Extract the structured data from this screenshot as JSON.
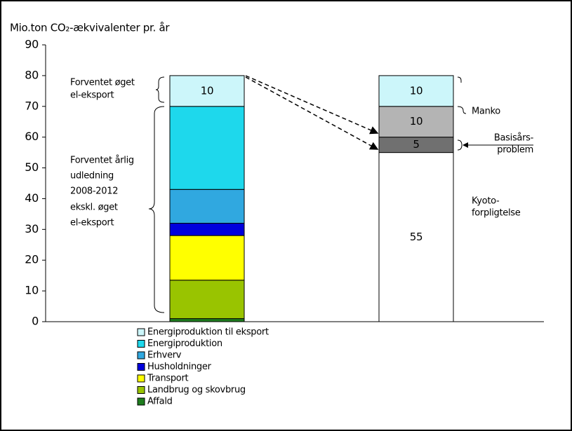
{
  "chart_data": {
    "type": "bar",
    "stacked": true,
    "title": "Mio.ton CO₂-ækvivalenter pr. år",
    "categories": [
      null,
      null
    ],
    "ylim": [
      0,
      90
    ],
    "yticks": [
      0,
      10,
      20,
      30,
      40,
      50,
      60,
      70,
      80,
      90
    ],
    "series": [
      {
        "name": "Affald",
        "color": "#1e7d1e",
        "values": [
          1,
          null
        ],
        "labels": false
      },
      {
        "name": "Landbrug og skovbrug",
        "color": "#99c400",
        "values": [
          12.5,
          null
        ],
        "labels": false
      },
      {
        "name": "Transport",
        "color": "#ffff00",
        "values": [
          14.5,
          null
        ],
        "labels": false
      },
      {
        "name": "Husholdninger",
        "color": "#0000dd",
        "values": [
          4,
          null
        ],
        "labels": false
      },
      {
        "name": "Erhverv",
        "color": "#30a8e0",
        "values": [
          11,
          null
        ],
        "labels": false
      },
      {
        "name": "Energiproduktion",
        "color": "#1ed8ec",
        "values": [
          27,
          null
        ],
        "labels": false
      },
      {
        "name": "Energiproduktion til eksport",
        "color": "#ccf6fa",
        "values": [
          10,
          10
        ],
        "labels": true
      }
    ],
    "right_stack": [
      {
        "label_lines": [
          "Kyoto-",
          "forpligtelse"
        ],
        "color": "#ffffff",
        "value": 55
      },
      {
        "label_lines": [
          "Basisårs-",
          "problem"
        ],
        "color": "#707070",
        "value": 5
      },
      {
        "label_lines": [
          "Manko"
        ],
        "color": "#b4b4b4",
        "value": 10
      }
    ],
    "annotations": [
      {
        "lines": [
          "Forventet øget",
          "el-eksport"
        ]
      },
      {
        "lines": [
          "Forventet årlig",
          "udledning",
          "2008-2012",
          "ekskl. øget",
          "el-eksport"
        ]
      }
    ]
  }
}
